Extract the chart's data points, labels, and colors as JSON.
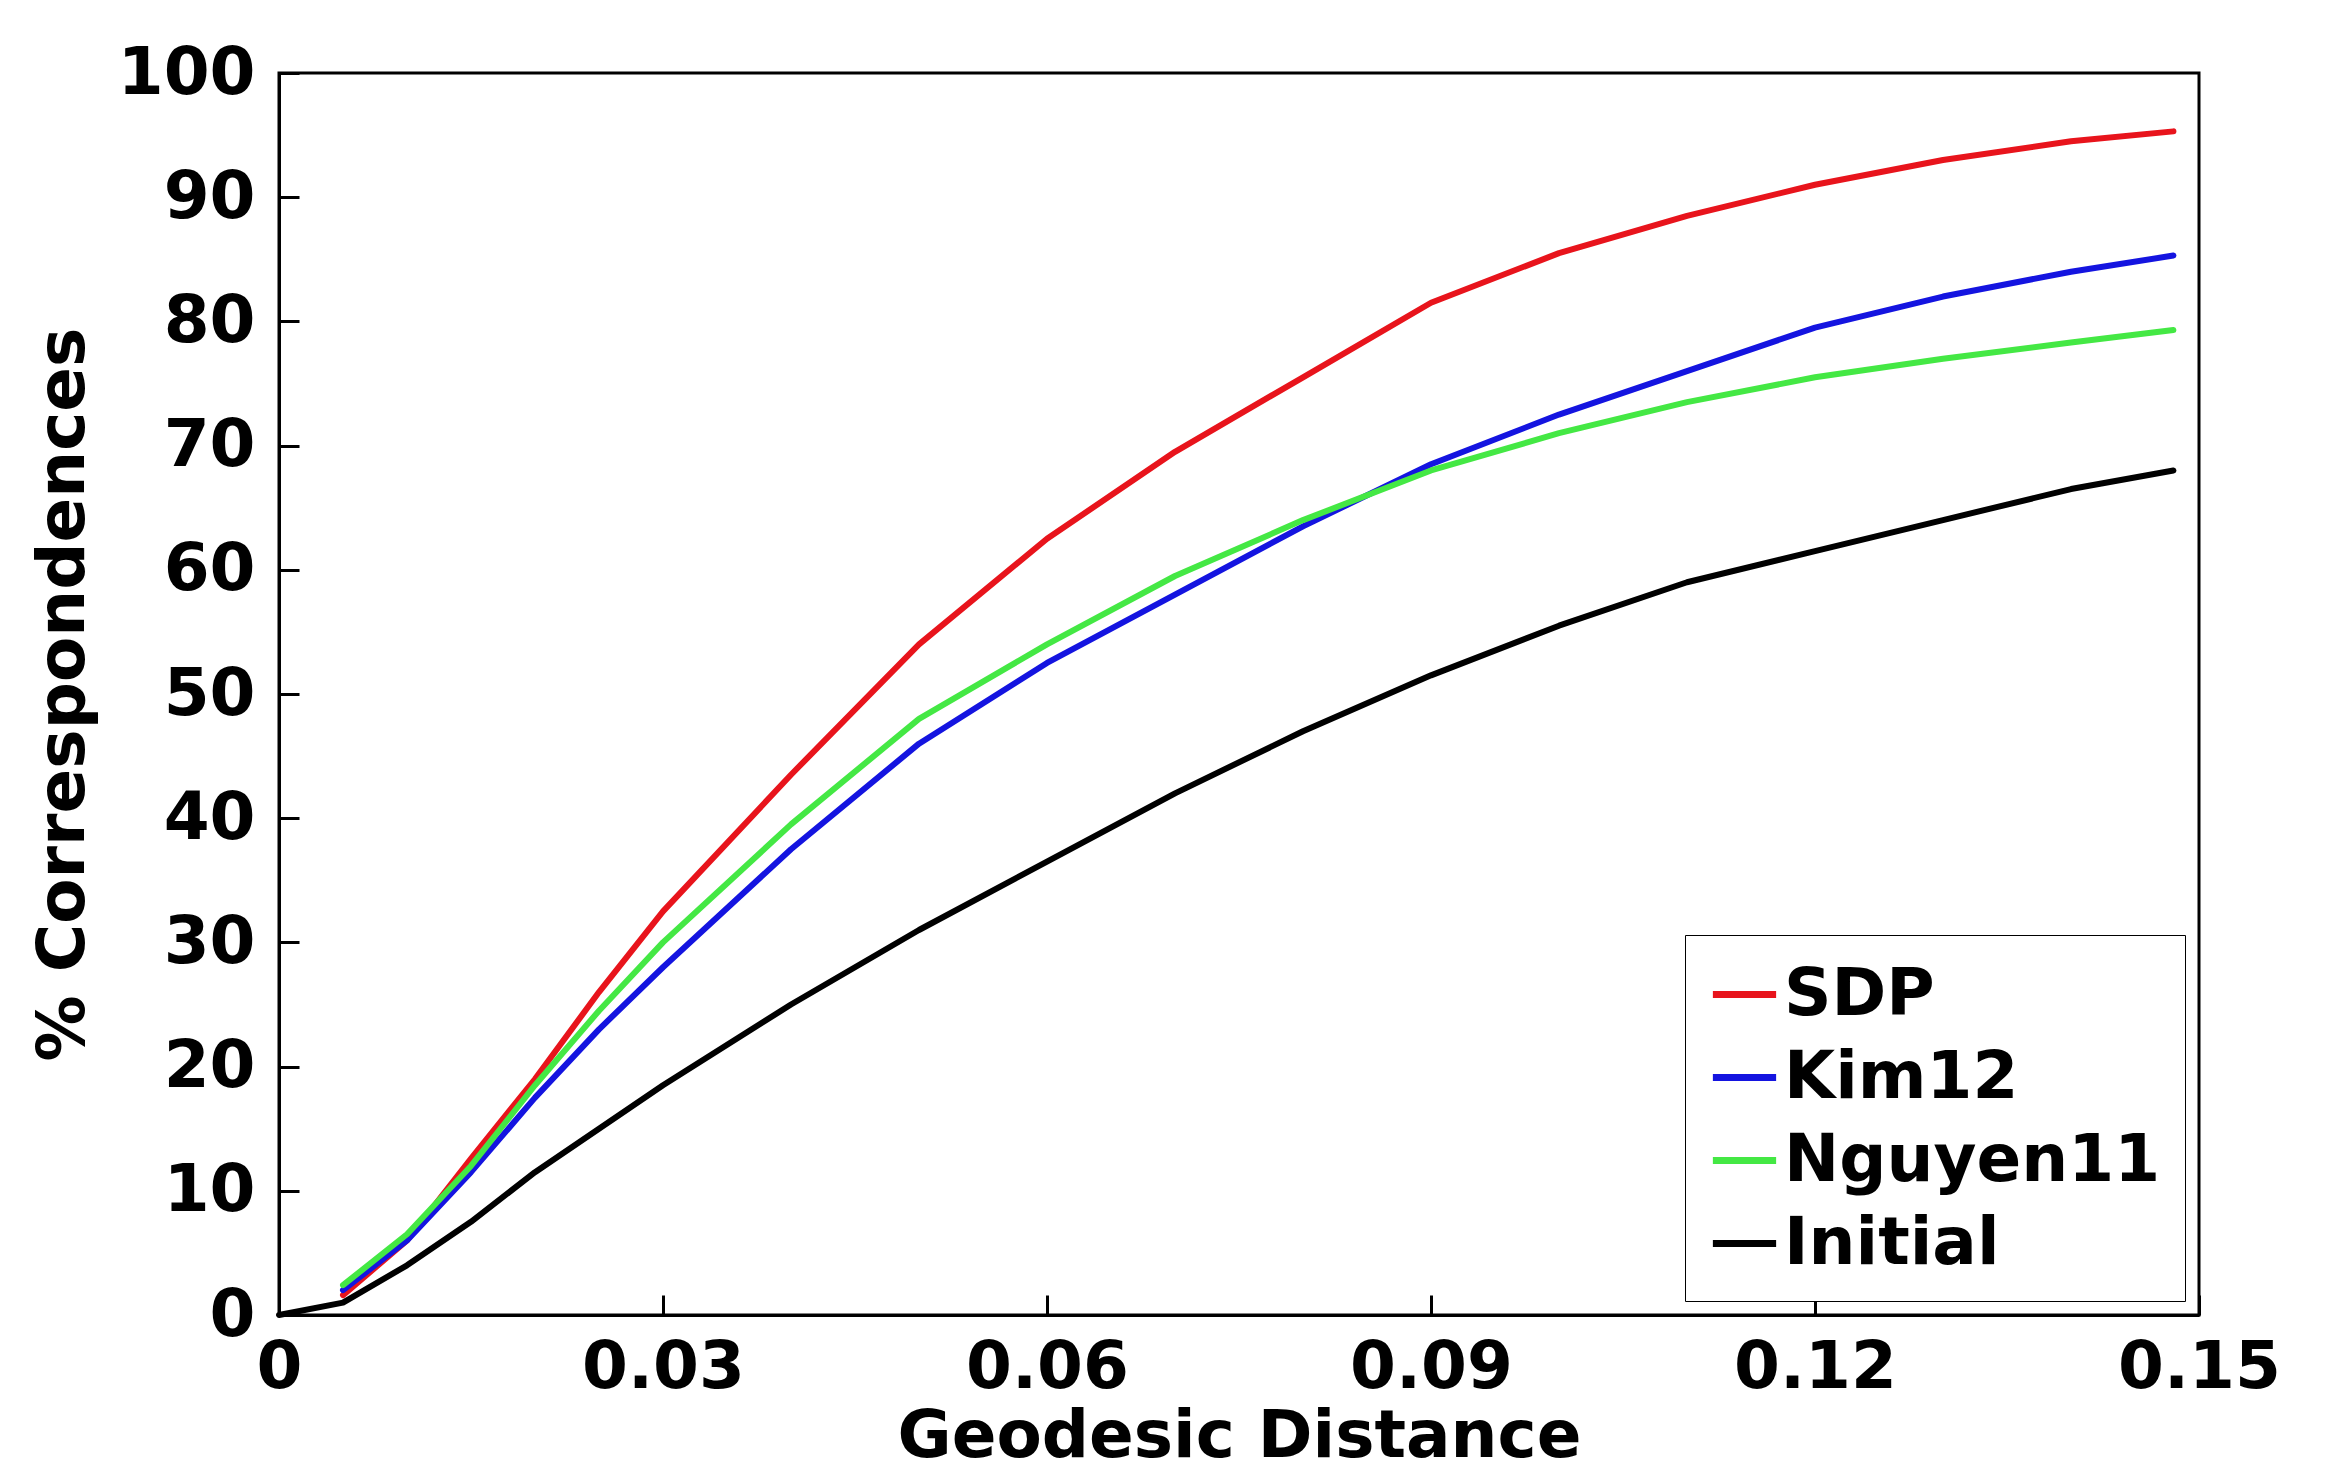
{
  "chart_data": {
    "type": "line",
    "xlabel": "Geodesic Distance",
    "ylabel": "% Correspondences",
    "x": [
      0,
      0.005,
      0.01,
      0.015,
      0.02,
      0.025,
      0.03,
      0.04,
      0.05,
      0.06,
      0.07,
      0.08,
      0.09,
      0.1,
      0.11,
      0.12,
      0.13,
      0.14,
      0.148
    ],
    "series": [
      {
        "name": "SDP",
        "color": "#e8141c",
        "values": [
          null,
          1.6,
          6,
          12.6,
          19,
          26,
          32.5,
          43.5,
          54,
          62.5,
          69.5,
          75.5,
          81.5,
          85.5,
          88.5,
          91,
          93,
          94.5,
          95.3
        ]
      },
      {
        "name": "Kim12",
        "color": "#1414e0",
        "values": [
          null,
          2,
          6,
          11.5,
          17.5,
          23,
          28,
          37.5,
          46,
          52.5,
          58,
          63.5,
          68.5,
          72.5,
          76,
          79.5,
          82,
          84,
          85.3
        ]
      },
      {
        "name": "Nguyen11",
        "color": "#44e844",
        "values": [
          null,
          2.4,
          6.5,
          12,
          18.5,
          24.5,
          30,
          39.5,
          48,
          54,
          59.5,
          64,
          68,
          71,
          73.5,
          75.5,
          77,
          78.3,
          79.3
        ]
      },
      {
        "name": "Initial",
        "color": "#000000",
        "values": [
          0,
          1,
          4,
          7.5,
          11.5,
          15,
          18.5,
          25,
          31,
          36.5,
          42,
          47,
          51.5,
          55.5,
          59,
          61.5,
          64,
          66.5,
          68
        ]
      }
    ],
    "xlim": [
      0,
      0.15
    ],
    "xticks": [
      0,
      0.03,
      0.06,
      0.09,
      0.12,
      0.15
    ],
    "ylim": [
      0,
      100
    ],
    "yticks": [
      0,
      10,
      20,
      30,
      40,
      50,
      60,
      70,
      80,
      90,
      100
    ],
    "grid": false,
    "legend": "bottom right",
    "marker": "none",
    "line_style": "solid"
  }
}
